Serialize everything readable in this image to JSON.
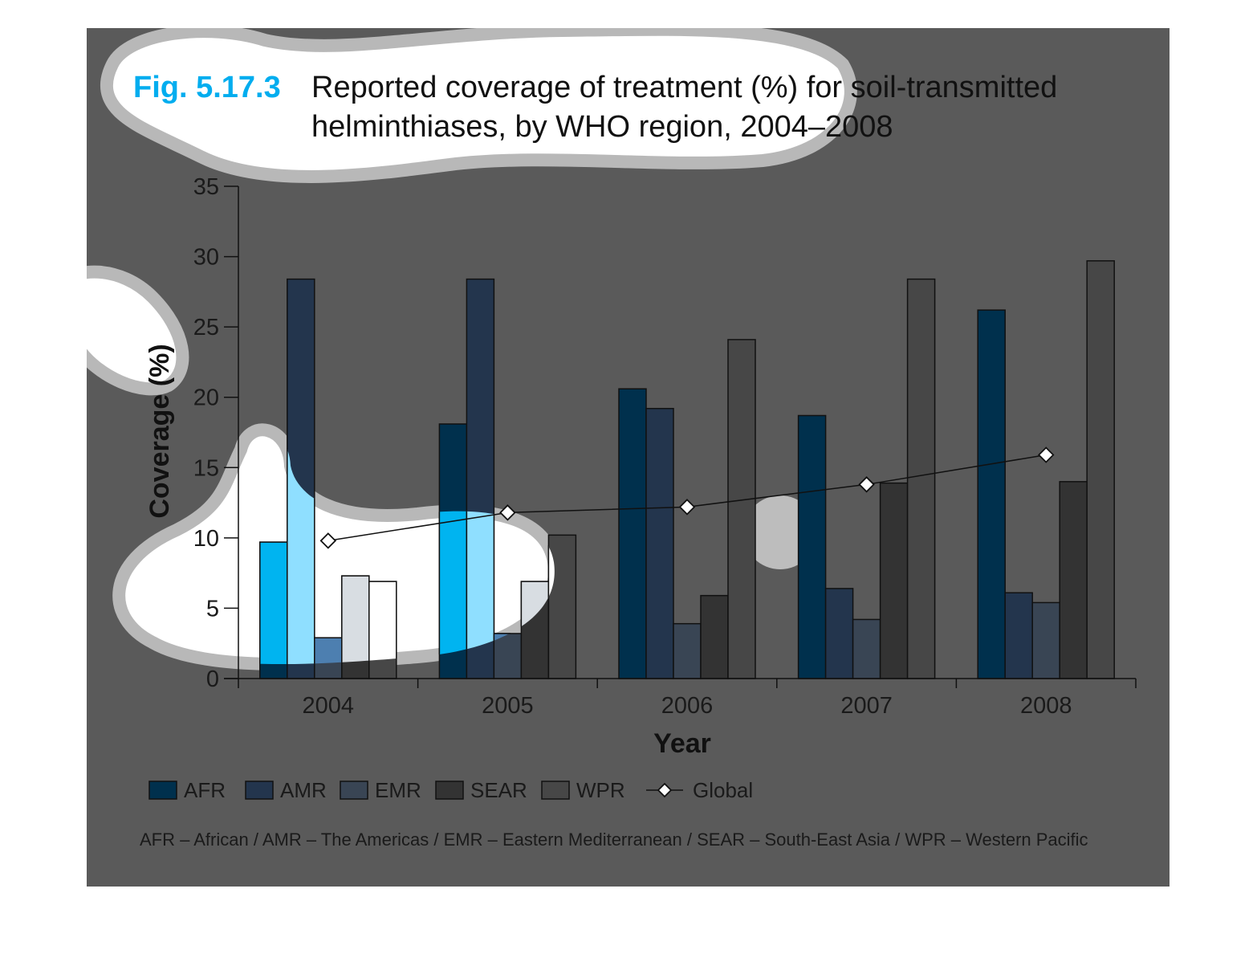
{
  "figure": {
    "label": "Fig. 5.17.3",
    "title_line1": "Reported coverage of treatment (%) for soil-transmitted",
    "title_line2": "helminthiases, by WHO region, 2004–2008",
    "footnote": "AFR – African / AMR – The Americas / EMR – Eastern Mediterranean / SEAR – South-East Asia / WPR – Western Pacific"
  },
  "colors": {
    "panel_bg": "#5a5a5a",
    "AFR": "#00304d",
    "AMR": "#23354d",
    "EMR": "#394554",
    "SEAR": "#333333",
    "WPR": "#474747",
    "highlight_blue": "#00b4f0"
  },
  "chart_data": {
    "type": "bar",
    "categories": [
      "2004",
      "2005",
      "2006",
      "2007",
      "2008"
    ],
    "series": [
      {
        "name": "AFR",
        "values": [
          9.7,
          18.1,
          20.6,
          18.7,
          26.2
        ]
      },
      {
        "name": "AMR",
        "values": [
          28.4,
          28.4,
          19.2,
          6.4,
          6.1
        ]
      },
      {
        "name": "EMR",
        "values": [
          2.9,
          3.2,
          3.9,
          4.2,
          5.4
        ]
      },
      {
        "name": "SEAR",
        "values": [
          7.3,
          6.9,
          5.9,
          13.9,
          14.0
        ]
      },
      {
        "name": "WPR",
        "values": [
          6.9,
          10.2,
          24.1,
          28.4,
          29.7
        ]
      }
    ],
    "line_series": {
      "name": "Global",
      "values": [
        9.8,
        11.8,
        12.2,
        13.8,
        15.9
      ]
    },
    "xlabel": "Year",
    "ylabel": "Coverage (%)",
    "ylim": [
      0,
      35
    ],
    "yticks": [
      "0",
      "5",
      "10",
      "15",
      "20",
      "25",
      "30",
      "35"
    ],
    "grid": false,
    "legend": {
      "placement": "bottom",
      "entries": [
        "AFR",
        "AMR",
        "EMR",
        "SEAR",
        "WPR",
        "Global"
      ]
    }
  }
}
